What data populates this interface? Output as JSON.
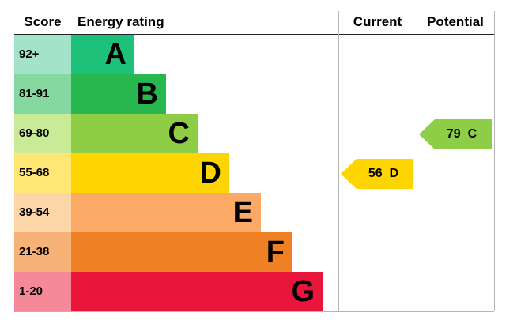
{
  "header": {
    "score": "Score",
    "energy_rating": "Energy rating",
    "current": "Current",
    "potential": "Potential"
  },
  "bands": [
    {
      "score": "92+",
      "letter": "A",
      "color": "#1ec179",
      "tint": "#a2e3c9"
    },
    {
      "score": "81-91",
      "letter": "B",
      "color": "#28b64e",
      "tint": "#85d9a0"
    },
    {
      "score": "69-80",
      "letter": "C",
      "color": "#8dce46",
      "tint": "#c9eb97"
    },
    {
      "score": "55-68",
      "letter": "D",
      "color": "#ffd500",
      "tint": "#ffe773"
    },
    {
      "score": "39-54",
      "letter": "E",
      "color": "#fbaa65",
      "tint": "#fdd6a7"
    },
    {
      "score": "21-38",
      "letter": "F",
      "color": "#ef8023",
      "tint": "#f6b277"
    },
    {
      "score": "1-20",
      "letter": "G",
      "color": "#e9153b",
      "tint": "#f5899a"
    }
  ],
  "current": {
    "value": "56",
    "letter": "D",
    "color": "#ffd500"
  },
  "potential": {
    "value": "79",
    "letter": "C",
    "color": "#8dce46"
  },
  "chart_data": {
    "type": "bar",
    "title": "Energy rating",
    "categories": [
      "A",
      "B",
      "C",
      "D",
      "E",
      "F",
      "G"
    ],
    "score_ranges": [
      "92+",
      "81-91",
      "69-80",
      "55-68",
      "39-54",
      "21-38",
      "1-20"
    ],
    "band_colors": [
      "#1ec179",
      "#28b64e",
      "#8dce46",
      "#ffd500",
      "#fbaa65",
      "#ef8023",
      "#e9153b"
    ],
    "current_rating": {
      "value": 56,
      "band": "D"
    },
    "potential_rating": {
      "value": 79,
      "band": "C"
    },
    "layout": "horizontal stepped EPC bands, width increasing from A to G"
  }
}
